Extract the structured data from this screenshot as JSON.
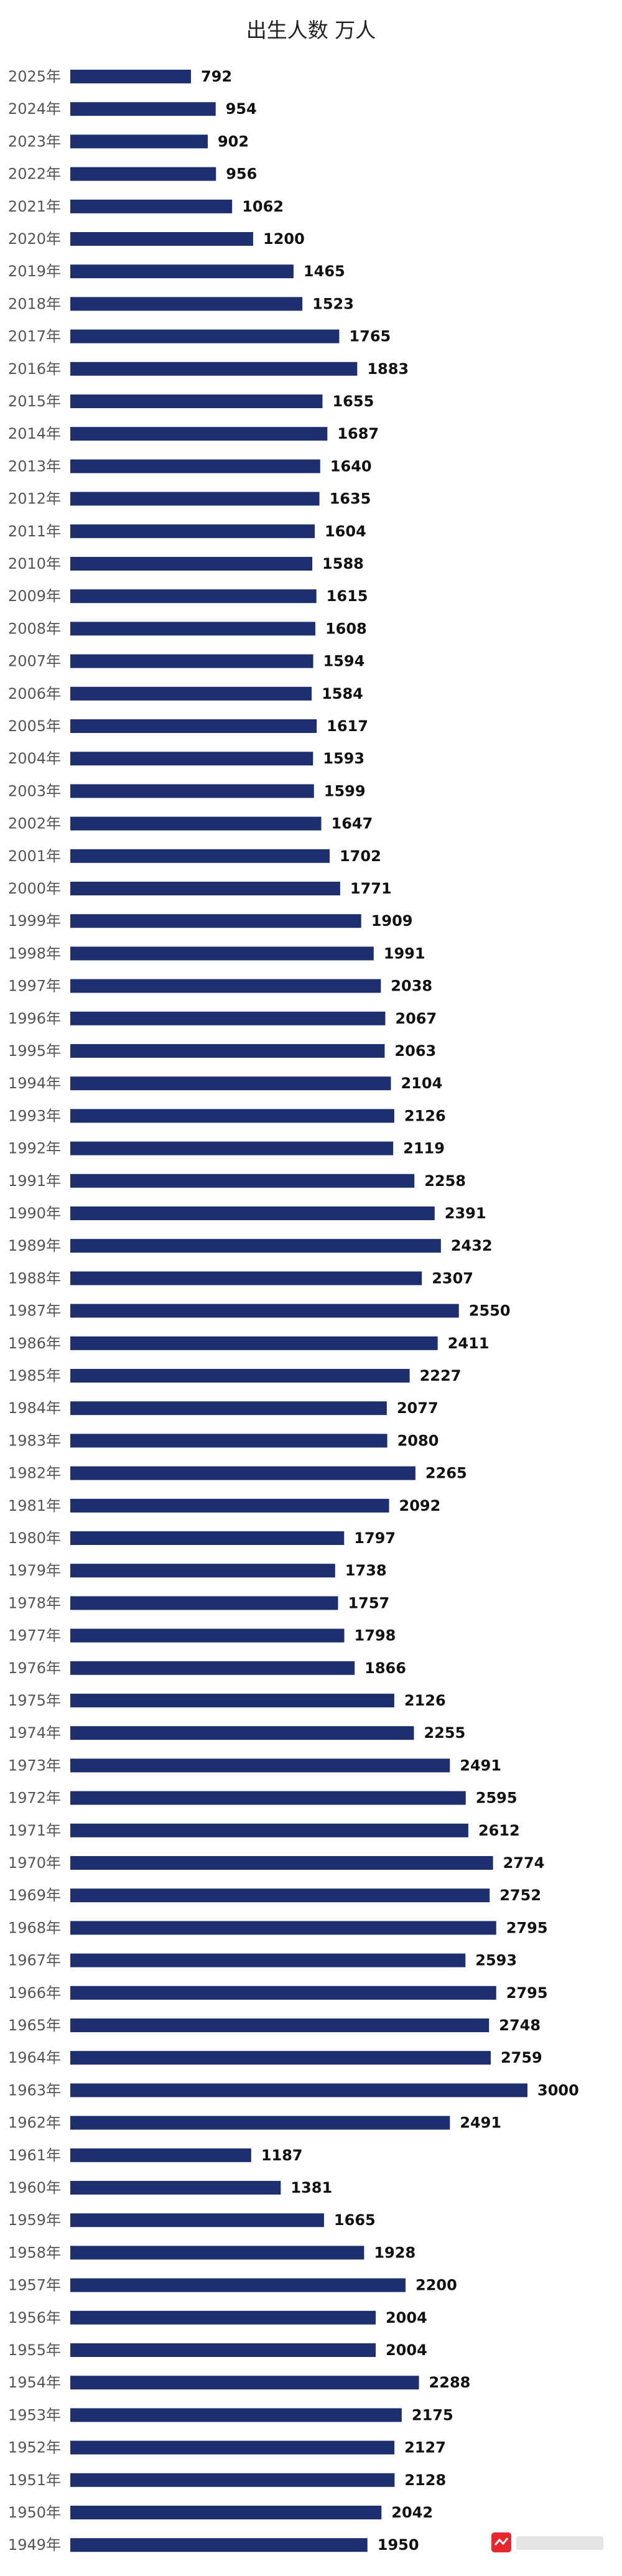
{
  "chart_data": {
    "type": "bar",
    "orientation": "horizontal",
    "title": "出生人数 万人",
    "xlabel": "",
    "ylabel": "",
    "xlim": [
      0,
      3000
    ],
    "grid": false,
    "legend": "none",
    "bar_color": "#1d2f6e",
    "categories": [
      "2025年",
      "2024年",
      "2023年",
      "2022年",
      "2021年",
      "2020年",
      "2019年",
      "2018年",
      "2017年",
      "2016年",
      "2015年",
      "2014年",
      "2013年",
      "2012年",
      "2011年",
      "2010年",
      "2009年",
      "2008年",
      "2007年",
      "2006年",
      "2005年",
      "2004年",
      "2003年",
      "2002年",
      "2001年",
      "2000年",
      "1999年",
      "1998年",
      "1997年",
      "1996年",
      "1995年",
      "1994年",
      "1993年",
      "1992年",
      "1991年",
      "1990年",
      "1989年",
      "1988年",
      "1987年",
      "1986年",
      "1985年",
      "1984年",
      "1983年",
      "1982年",
      "1981年",
      "1980年",
      "1979年",
      "1978年",
      "1977年",
      "1976年",
      "1975年",
      "1974年",
      "1973年",
      "1972年",
      "1971年",
      "1970年",
      "1969年",
      "1968年",
      "1967年",
      "1966年",
      "1965年",
      "1964年",
      "1963年",
      "1962年",
      "1961年",
      "1960年",
      "1959年",
      "1958年",
      "1957年",
      "1956年",
      "1955年",
      "1954年",
      "1953年",
      "1952年",
      "1951年",
      "1950年",
      "1949年"
    ],
    "values": [
      792,
      954,
      902,
      956,
      1062,
      1200,
      1465,
      1523,
      1765,
      1883,
      1655,
      1687,
      1640,
      1635,
      1604,
      1588,
      1615,
      1608,
      1594,
      1584,
      1617,
      1593,
      1599,
      1647,
      1702,
      1771,
      1909,
      1991,
      2038,
      2067,
      2063,
      2104,
      2126,
      2119,
      2258,
      2391,
      2432,
      2307,
      2550,
      2411,
      2227,
      2077,
      2080,
      2265,
      2092,
      1797,
      1738,
      1757,
      1798,
      1866,
      2126,
      2255,
      2491,
      2595,
      2612,
      2774,
      2752,
      2795,
      2593,
      2795,
      2748,
      2759,
      3000,
      2491,
      1187,
      1381,
      1665,
      1928,
      2200,
      2004,
      2004,
      2288,
      2175,
      2127,
      2128,
      2042,
      1950
    ]
  }
}
